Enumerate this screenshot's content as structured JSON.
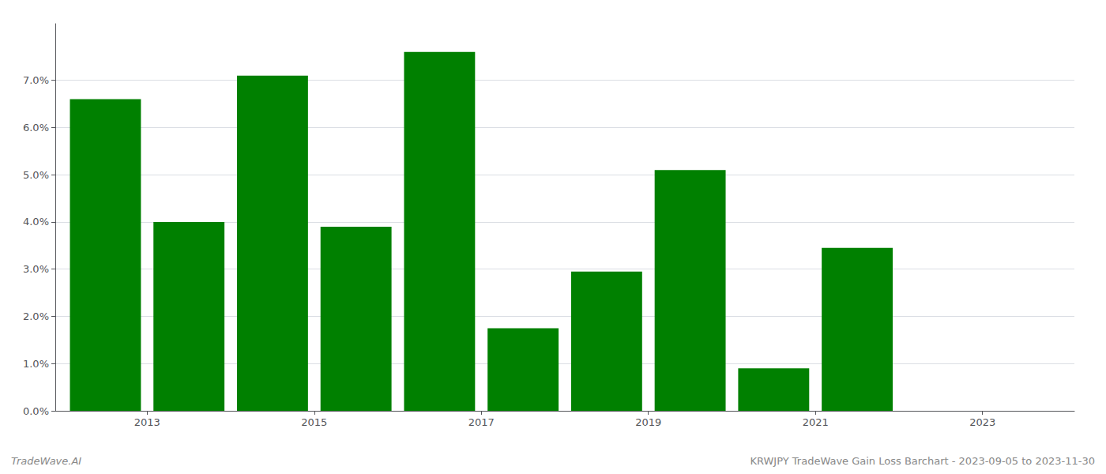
{
  "chart_data": {
    "type": "bar",
    "x": [
      2013,
      2014,
      2015,
      2016,
      2017,
      2018,
      2019,
      2020,
      2021,
      2022,
      2023
    ],
    "values": [
      0.066,
      0.04,
      0.071,
      0.039,
      0.076,
      0.0175,
      0.0295,
      0.051,
      0.009,
      0.0345,
      0.0
    ],
    "color": "#008000",
    "xlim": [
      2012.4,
      2024.6
    ],
    "xticks": [
      {
        "value": 2013.5,
        "label": "2013"
      },
      {
        "value": 2015.5,
        "label": "2015"
      },
      {
        "value": 2017.5,
        "label": "2017"
      },
      {
        "value": 2019.5,
        "label": "2019"
      },
      {
        "value": 2021.5,
        "label": "2021"
      },
      {
        "value": 2023.5,
        "label": "2023"
      }
    ],
    "ylim": [
      0,
      0.082
    ],
    "yticks": [
      {
        "value": 0.0,
        "label": "0.0%"
      },
      {
        "value": 0.01,
        "label": "1.0%"
      },
      {
        "value": 0.02,
        "label": "2.0%"
      },
      {
        "value": 0.03,
        "label": "3.0%"
      },
      {
        "value": 0.04,
        "label": "4.0%"
      },
      {
        "value": 0.05,
        "label": "5.0%"
      },
      {
        "value": 0.06,
        "label": "6.0%"
      },
      {
        "value": 0.07,
        "label": "7.0%"
      }
    ],
    "grid": true,
    "annotations": [
      "TradeWave.AI",
      "KRWJPY TradeWave Gain Loss Barchart - 2023-09-05 to 2023-11-30"
    ]
  }
}
